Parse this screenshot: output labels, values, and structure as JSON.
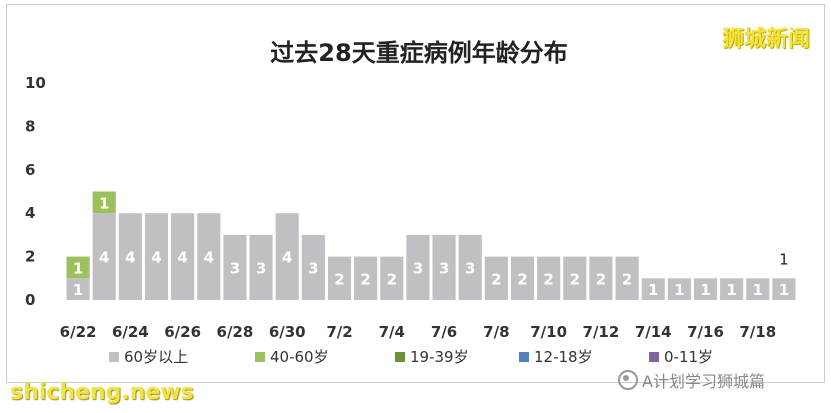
{
  "chart_data": {
    "type": "bar",
    "stacked": true,
    "title": "过去28天重症病例年龄分布",
    "ylim": [
      0,
      10
    ],
    "yticks": [
      0,
      2,
      4,
      6,
      8,
      10
    ],
    "grid": false,
    "legend_placement": "bottom",
    "categories": [
      "6/22",
      "6/23",
      "6/24",
      "6/25",
      "6/26",
      "6/27",
      "6/28",
      "6/29",
      "6/30",
      "7/1",
      "7/2",
      "7/3",
      "7/4",
      "7/5",
      "7/6",
      "7/7",
      "7/8",
      "7/9",
      "7/10",
      "7/11",
      "7/12",
      "7/13",
      "7/14",
      "7/15",
      "7/16",
      "7/17",
      "7/18",
      "7/19"
    ],
    "x_tick_labels": [
      "6/22",
      "",
      "6/24",
      "",
      "6/26",
      "",
      "6/28",
      "",
      "6/30",
      "",
      "7/2",
      "",
      "7/4",
      "",
      "7/6",
      "",
      "7/8",
      "",
      "7/10",
      "",
      "7/12",
      "",
      "7/14",
      "",
      "7/16",
      "",
      "7/18",
      ""
    ],
    "series": [
      {
        "name": "60岁以上",
        "color": "#c0c0c4",
        "values": [
          1,
          4,
          4,
          4,
          4,
          4,
          3,
          3,
          4,
          3,
          2,
          2,
          2,
          3,
          3,
          3,
          2,
          2,
          2,
          2,
          2,
          2,
          1,
          1,
          1,
          1,
          1,
          1
        ]
      },
      {
        "name": "40-60岁",
        "color": "#9cc15c",
        "values": [
          1,
          1,
          0,
          0,
          0,
          0,
          0,
          0,
          0,
          0,
          0,
          0,
          0,
          0,
          0,
          0,
          0,
          0,
          0,
          0,
          0,
          0,
          0,
          0,
          0,
          0,
          0,
          0
        ]
      },
      {
        "name": "19-39岁",
        "color": "#6f8f3a",
        "values": [
          0,
          0,
          0,
          0,
          0,
          0,
          0,
          0,
          0,
          0,
          0,
          0,
          0,
          0,
          0,
          0,
          0,
          0,
          0,
          0,
          0,
          0,
          0,
          0,
          0,
          0,
          0,
          0
        ]
      },
      {
        "name": "12-18岁",
        "color": "#4f81bd",
        "values": [
          0,
          0,
          0,
          0,
          0,
          0,
          0,
          0,
          0,
          0,
          0,
          0,
          0,
          0,
          0,
          0,
          0,
          0,
          0,
          0,
          0,
          0,
          0,
          0,
          0,
          0,
          0,
          0
        ]
      },
      {
        "name": "0-11岁",
        "color": "#8064a2",
        "values": [
          0,
          0,
          0,
          0,
          0,
          0,
          0,
          0,
          0,
          0,
          0,
          0,
          0,
          0,
          0,
          0,
          0,
          0,
          0,
          0,
          0,
          0,
          0,
          0,
          0,
          0,
          0,
          0
        ]
      }
    ],
    "annotations": [
      {
        "category": "7/19",
        "text": "1"
      }
    ]
  },
  "watermarks": {
    "top_right": "狮城新闻",
    "bottom_left": "shicheng.news",
    "bottom_right": "A计划学习狮城篇"
  }
}
